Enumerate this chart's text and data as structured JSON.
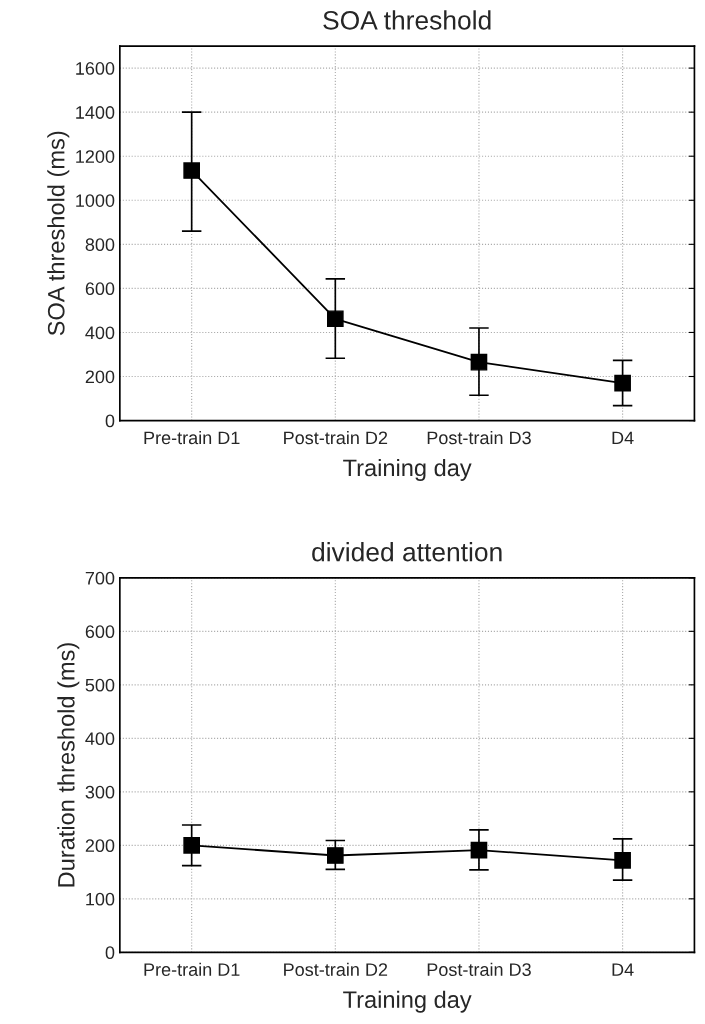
{
  "chart_data": [
    {
      "type": "line",
      "title": "SOA threshold",
      "xlabel": "Training day",
      "ylabel": "SOA threshold (ms)",
      "categories": [
        "Pre-train D1",
        "Post-train D2",
        "Post-train D3",
        "D4"
      ],
      "series": [
        {
          "color": "#000000",
          "values": [
            1135,
            462,
            265,
            170
          ],
          "errors": [
            [
              860,
              1400
            ],
            [
              283,
              643
            ],
            [
              115,
              420
            ],
            [
              68,
              273
            ]
          ]
        }
      ],
      "ylim": [
        0,
        1700
      ],
      "yticks": [
        0,
        200,
        400,
        600,
        800,
        1000,
        1200,
        1400,
        1600
      ],
      "grid": true,
      "marker": "square",
      "line_style": "solid"
    },
    {
      "type": "line",
      "title": "divided attention",
      "xlabel": "Training day",
      "ylabel": "Duration threshold (ms)",
      "categories": [
        "Pre-train D1",
        "Post-train D2",
        "Post-train D3",
        "D4"
      ],
      "series": [
        {
          "color": "#000000",
          "values": [
            200,
            181,
            191,
            172
          ],
          "errors": [
            [
              162,
              238
            ],
            [
              155,
              209
            ],
            [
              154,
              229
            ],
            [
              135,
              212
            ]
          ]
        }
      ],
      "ylim": [
        0,
        700
      ],
      "yticks": [
        0,
        100,
        200,
        300,
        400,
        500,
        600,
        700
      ],
      "grid": true,
      "marker": "square",
      "line_style": "solid"
    }
  ]
}
